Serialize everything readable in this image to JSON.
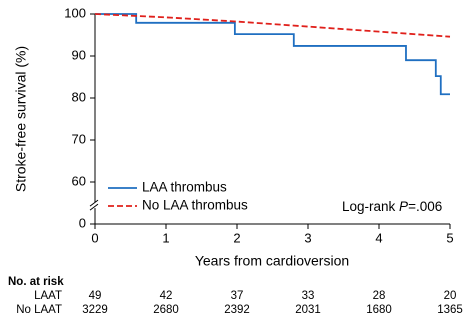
{
  "chart_data": {
    "type": "line",
    "xlabel": "Years from cardioversion",
    "ylabel": "Stroke-free survival (%)",
    "xlim": [
      0,
      5
    ],
    "xticks": [
      0,
      1,
      2,
      3,
      4,
      5
    ],
    "ylim": [
      0,
      100
    ],
    "yticks": [
      0,
      60,
      70,
      80,
      90,
      100
    ],
    "axis_break": true,
    "legend": "lower left",
    "series": [
      {
        "name": "LAA thrombus",
        "color": "#1f6fc1",
        "step": true,
        "x": [
          0,
          0.58,
          1.97,
          2.8,
          4.38,
          4.8,
          4.87,
          5.0
        ],
        "values": [
          100,
          97.9,
          95.2,
          92.4,
          89.0,
          85.2,
          80.9,
          80.9
        ]
      },
      {
        "name": "No LAA thrombus",
        "color": "#e0201b",
        "dashed": true,
        "x": [
          0,
          1,
          2,
          3,
          4,
          5
        ],
        "values": [
          100,
          99.2,
          98.2,
          97.0,
          95.8,
          94.6
        ]
      }
    ],
    "annotation": {
      "prefix": "Log-rank ",
      "italic": "P",
      "suffix": "=.006"
    },
    "risk_table": {
      "title": "No. at risk",
      "rows": [
        {
          "label": "LAAT",
          "values": [
            49,
            42,
            37,
            33,
            28,
            20
          ]
        },
        {
          "label": "No LAAT",
          "values": [
            3229,
            2680,
            2392,
            2031,
            1680,
            1365
          ]
        }
      ]
    }
  }
}
